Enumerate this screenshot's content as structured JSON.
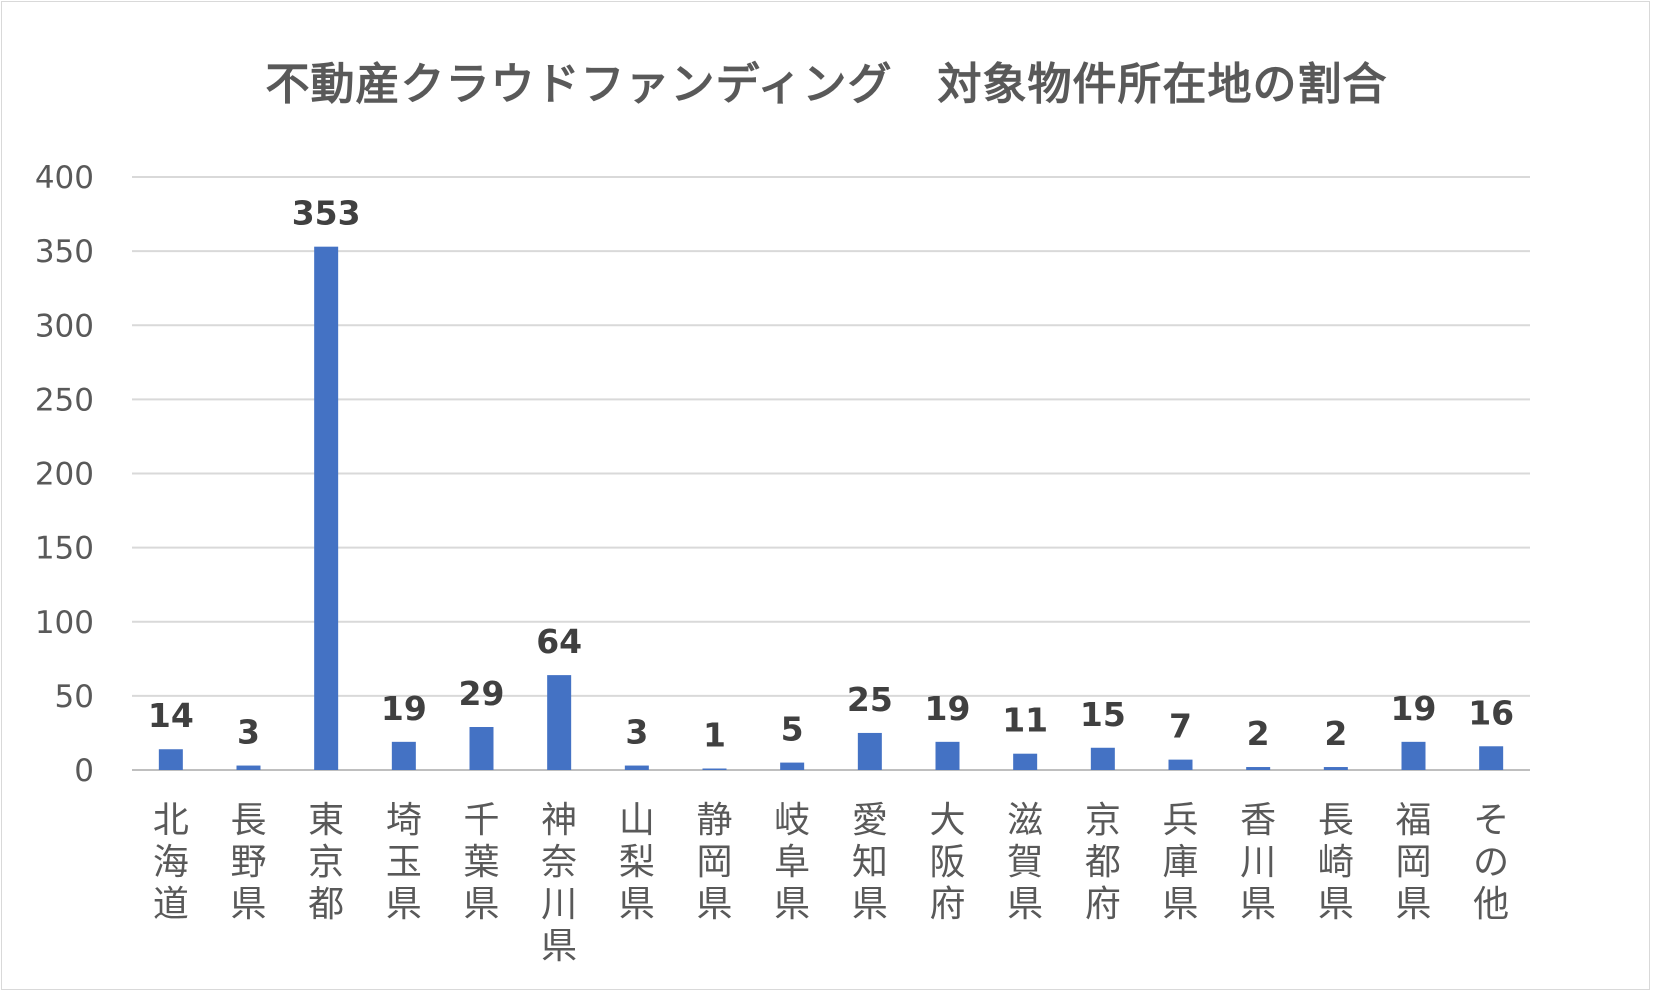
{
  "chart_data": {
    "type": "bar",
    "title": "不動産クラウドファンディング　対象物件所在地の割合",
    "xlabel": "",
    "ylabel": "",
    "ylim": [
      0,
      400
    ],
    "yticks": [
      0,
      50,
      100,
      150,
      200,
      250,
      300,
      350,
      400
    ],
    "grid": true,
    "legend": "none",
    "bar_color": "#4472C4",
    "categories": [
      "北海道",
      "長野県",
      "東京都",
      "埼玉県",
      "千葉県",
      "神奈川県",
      "山梨県",
      "静岡県",
      "岐阜県",
      "愛知県",
      "大阪府",
      "滋賀県",
      "京都府",
      "兵庫県",
      "香川県",
      "長崎県",
      "福岡県",
      "その他"
    ],
    "values": [
      14,
      3,
      353,
      19,
      29,
      64,
      3,
      1,
      5,
      25,
      19,
      11,
      15,
      7,
      2,
      2,
      19,
      16
    ]
  }
}
